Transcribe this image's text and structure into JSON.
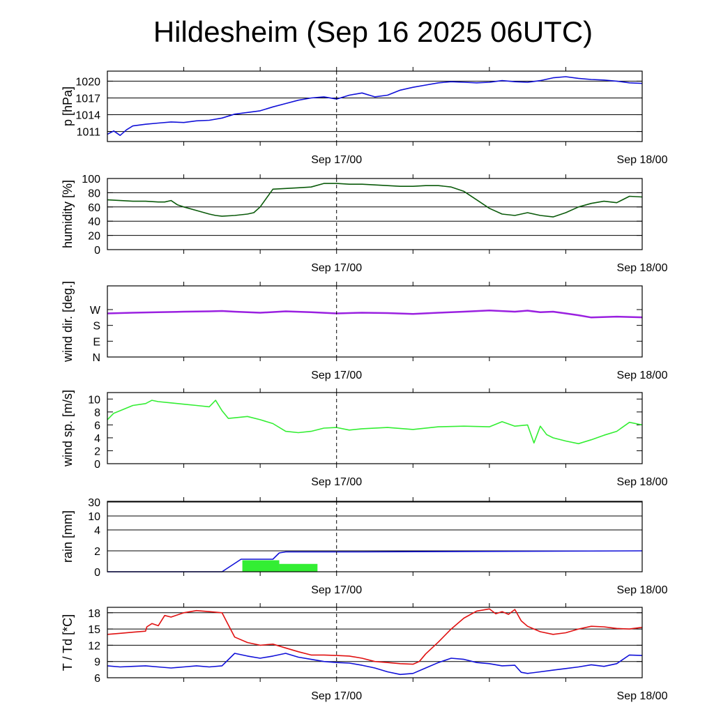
{
  "title": "Hildesheim (Sep 16 2025 06UTC)",
  "x_axis": {
    "start": "Sep 16 2025 06UTC",
    "end": "Sep 18 2025 00UTC",
    "ticks": [
      "Sep 17/00",
      "Sep 18/00"
    ],
    "minor_ticks": "every 6 h",
    "marker": "Sep 17/00"
  },
  "colors": {
    "pressure": "#1010d8",
    "humidity": "#0a5a0a",
    "wind_dir": "#9a20e0",
    "wind_speed": "#33ee33",
    "rain_bar": "#33ee33",
    "rain_cumulative": "#1010d8",
    "temperature": "#e01010",
    "dewpoint": "#1010d8"
  },
  "chart_data": [
    {
      "type": "line",
      "ylabel": "p [hPa]",
      "ylim": [
        1009.2,
        1021.8
      ],
      "yticks": [
        1011,
        1014,
        1017,
        1020
      ],
      "grid": true,
      "series": [
        {
          "color_key": "pressure",
          "x": [
            0,
            0.5,
            1,
            1.5,
            2,
            3,
            4,
            5,
            6,
            7,
            8,
            9,
            10,
            11,
            12,
            13,
            14,
            15,
            16,
            17,
            18,
            19,
            20,
            21,
            22,
            23,
            24,
            25,
            26,
            27,
            28,
            29,
            30,
            31,
            32,
            33,
            34,
            35,
            36,
            37,
            38,
            39,
            40,
            41,
            42
          ],
          "values": [
            1010.5,
            1011.1,
            1010.3,
            1011.3,
            1012.0,
            1012.3,
            1012.5,
            1012.7,
            1012.6,
            1012.9,
            1013.0,
            1013.4,
            1014.1,
            1014.4,
            1014.7,
            1015.4,
            1016.0,
            1016.6,
            1017.0,
            1017.2,
            1016.8,
            1017.5,
            1017.9,
            1017.2,
            1017.5,
            1018.4,
            1018.9,
            1019.3,
            1019.7,
            1019.9,
            1019.8,
            1019.7,
            1019.8,
            1020.1,
            1019.9,
            1019.8,
            1020.1,
            1020.6,
            1020.8,
            1020.5,
            1020.3,
            1020.2,
            1020.0,
            1019.7,
            1019.6
          ]
        }
      ]
    },
    {
      "type": "line",
      "ylabel": "humidity [%]",
      "ylim": [
        0,
        100
      ],
      "yticks": [
        0,
        20,
        40,
        60,
        80,
        100
      ],
      "grid": true,
      "series": [
        {
          "color_key": "humidity",
          "x": [
            0,
            1,
            2,
            2.8,
            3,
            4,
            4.5,
            5,
            5.5,
            6,
            7,
            8,
            8.5,
            9,
            10,
            11,
            11.5,
            12,
            13,
            14,
            15,
            16,
            17,
            18,
            19,
            20,
            21,
            22,
            23,
            24,
            25,
            26,
            27,
            28,
            29,
            30,
            31,
            32,
            33,
            34,
            35,
            36,
            37,
            38,
            39,
            40,
            41,
            42
          ],
          "values": [
            70,
            69,
            68,
            68,
            68,
            67,
            67,
            69,
            63,
            60,
            55,
            50,
            48,
            47,
            48,
            50,
            52,
            60,
            85,
            86,
            87,
            88,
            93,
            93,
            92,
            92,
            91,
            90,
            89,
            89,
            90,
            90,
            88,
            82,
            70,
            58,
            50,
            48,
            52,
            48,
            46,
            52,
            60,
            65,
            68,
            66,
            75,
            74
          ]
        }
      ]
    },
    {
      "type": "line",
      "ylabel": "wind dir. [deg.]",
      "ylim": [
        0,
        405
      ],
      "yticks": [
        0,
        90,
        180,
        270
      ],
      "ytick_labels": [
        "N",
        "E",
        "S",
        "W"
      ],
      "grid": false,
      "series": [
        {
          "color_key": "wind_dir",
          "x": [
            0,
            2,
            4,
            6,
            8,
            9,
            10,
            12,
            14,
            16,
            18,
            20,
            22,
            24,
            26,
            28,
            30,
            32,
            33,
            34,
            35,
            36,
            37,
            38,
            40,
            42
          ],
          "values": [
            248,
            252,
            255,
            258,
            260,
            262,
            258,
            252,
            260,
            255,
            248,
            252,
            250,
            245,
            252,
            258,
            265,
            258,
            264,
            255,
            258,
            248,
            238,
            225,
            230,
            226
          ]
        }
      ]
    },
    {
      "type": "line",
      "ylabel": "wind sp. [m/s]",
      "ylim": [
        0,
        11
      ],
      "yticks": [
        0,
        2,
        4,
        6,
        8,
        10
      ],
      "grid": false,
      "series": [
        {
          "color_key": "wind_speed",
          "x": [
            0,
            0.5,
            1,
            2,
            3,
            3.5,
            4,
            5,
            6,
            7,
            8,
            8.5,
            9,
            9.5,
            10,
            11,
            12,
            13,
            14,
            15,
            16,
            17,
            18,
            19,
            20,
            22,
            24,
            26,
            28,
            30,
            31,
            32,
            33,
            33.5,
            34,
            34.5,
            35,
            36,
            37,
            38,
            39,
            40,
            41,
            42
          ],
          "values": [
            6.8,
            7.8,
            8.2,
            9.0,
            9.3,
            9.8,
            9.6,
            9.4,
            9.2,
            9.0,
            8.8,
            9.8,
            8.2,
            7.0,
            7.1,
            7.3,
            6.8,
            6.2,
            5.0,
            4.8,
            5.0,
            5.5,
            5.6,
            5.2,
            5.4,
            5.6,
            5.3,
            5.7,
            5.8,
            5.7,
            6.5,
            5.8,
            6.0,
            3.2,
            5.8,
            4.5,
            4.0,
            3.5,
            3.1,
            3.7,
            4.4,
            5.0,
            6.4,
            6.0
          ]
        }
      ]
    },
    {
      "type": "bar",
      "ylabel": "rain [mm]",
      "yscale": "nonlinear",
      "yticks": [
        0,
        2,
        4,
        10,
        30
      ],
      "grid": true,
      "bars": {
        "color_key": "rain_bar",
        "segments": [
          {
            "start": 10.6,
            "end": 13.5,
            "value": 1.1
          },
          {
            "start": 13.5,
            "end": 16.5,
            "value": 0.75
          }
        ]
      },
      "series": [
        {
          "color_key": "rain_cumulative",
          "x": [
            0,
            9,
            10.5,
            13,
            13.5,
            14,
            16,
            18,
            20,
            42
          ],
          "values": [
            0,
            0,
            1.2,
            1.2,
            1.8,
            1.9,
            1.9,
            1.9,
            1.9,
            2.0
          ]
        }
      ]
    },
    {
      "type": "line",
      "ylabel": "T / Td [*C]",
      "ylim": [
        6,
        19
      ],
      "yticks": [
        6,
        9,
        12,
        15,
        18
      ],
      "grid": true,
      "series": [
        {
          "color_key": "temperature",
          "x": [
            0,
            1,
            2,
            3,
            3.1,
            3.5,
            4,
            4.5,
            5,
            6,
            7,
            8,
            9,
            10,
            11,
            12,
            13,
            14,
            15,
            16,
            17,
            18,
            19,
            20,
            21,
            22,
            23,
            24,
            24.5,
            25,
            26,
            27,
            28,
            29,
            30,
            30.5,
            31,
            31.5,
            32,
            32.5,
            33,
            34,
            35,
            36,
            37,
            38,
            39,
            40,
            41,
            42
          ],
          "values": [
            14.0,
            14.2,
            14.4,
            14.6,
            15.4,
            16.0,
            15.6,
            17.5,
            17.2,
            18.0,
            18.4,
            18.2,
            18.0,
            13.5,
            12.5,
            12.0,
            12.2,
            11.5,
            10.8,
            10.2,
            10.2,
            10.1,
            10.0,
            9.6,
            9.0,
            8.8,
            8.6,
            8.5,
            9.0,
            10.4,
            12.6,
            15.0,
            17.0,
            18.3,
            18.7,
            17.8,
            18.2,
            17.7,
            18.6,
            16.5,
            15.5,
            14.5,
            14.0,
            14.3,
            15.0,
            15.5,
            15.4,
            15.1,
            15.0,
            15.3
          ]
        },
        {
          "color_key": "dewpoint",
          "x": [
            0,
            1,
            2,
            3,
            4,
            5,
            6,
            7,
            8,
            9,
            10,
            11,
            12,
            13,
            14,
            15,
            16,
            17,
            18,
            19,
            20,
            21,
            22,
            23,
            24,
            25,
            26,
            27,
            28,
            29,
            30,
            31,
            32,
            32.5,
            33,
            34,
            35,
            36,
            37,
            38,
            39,
            40,
            41,
            42
          ],
          "values": [
            8.2,
            8.0,
            8.1,
            8.2,
            8.0,
            7.8,
            8.0,
            8.2,
            8.0,
            8.2,
            10.5,
            10.0,
            9.6,
            10.0,
            10.5,
            9.8,
            9.4,
            9.0,
            8.8,
            8.7,
            8.3,
            7.8,
            7.1,
            6.6,
            6.8,
            7.8,
            8.8,
            9.6,
            9.4,
            8.8,
            8.6,
            8.2,
            8.3,
            7.0,
            6.8,
            7.1,
            7.4,
            7.7,
            8.0,
            8.4,
            8.1,
            8.6,
            10.2,
            10.1
          ]
        }
      ]
    }
  ]
}
